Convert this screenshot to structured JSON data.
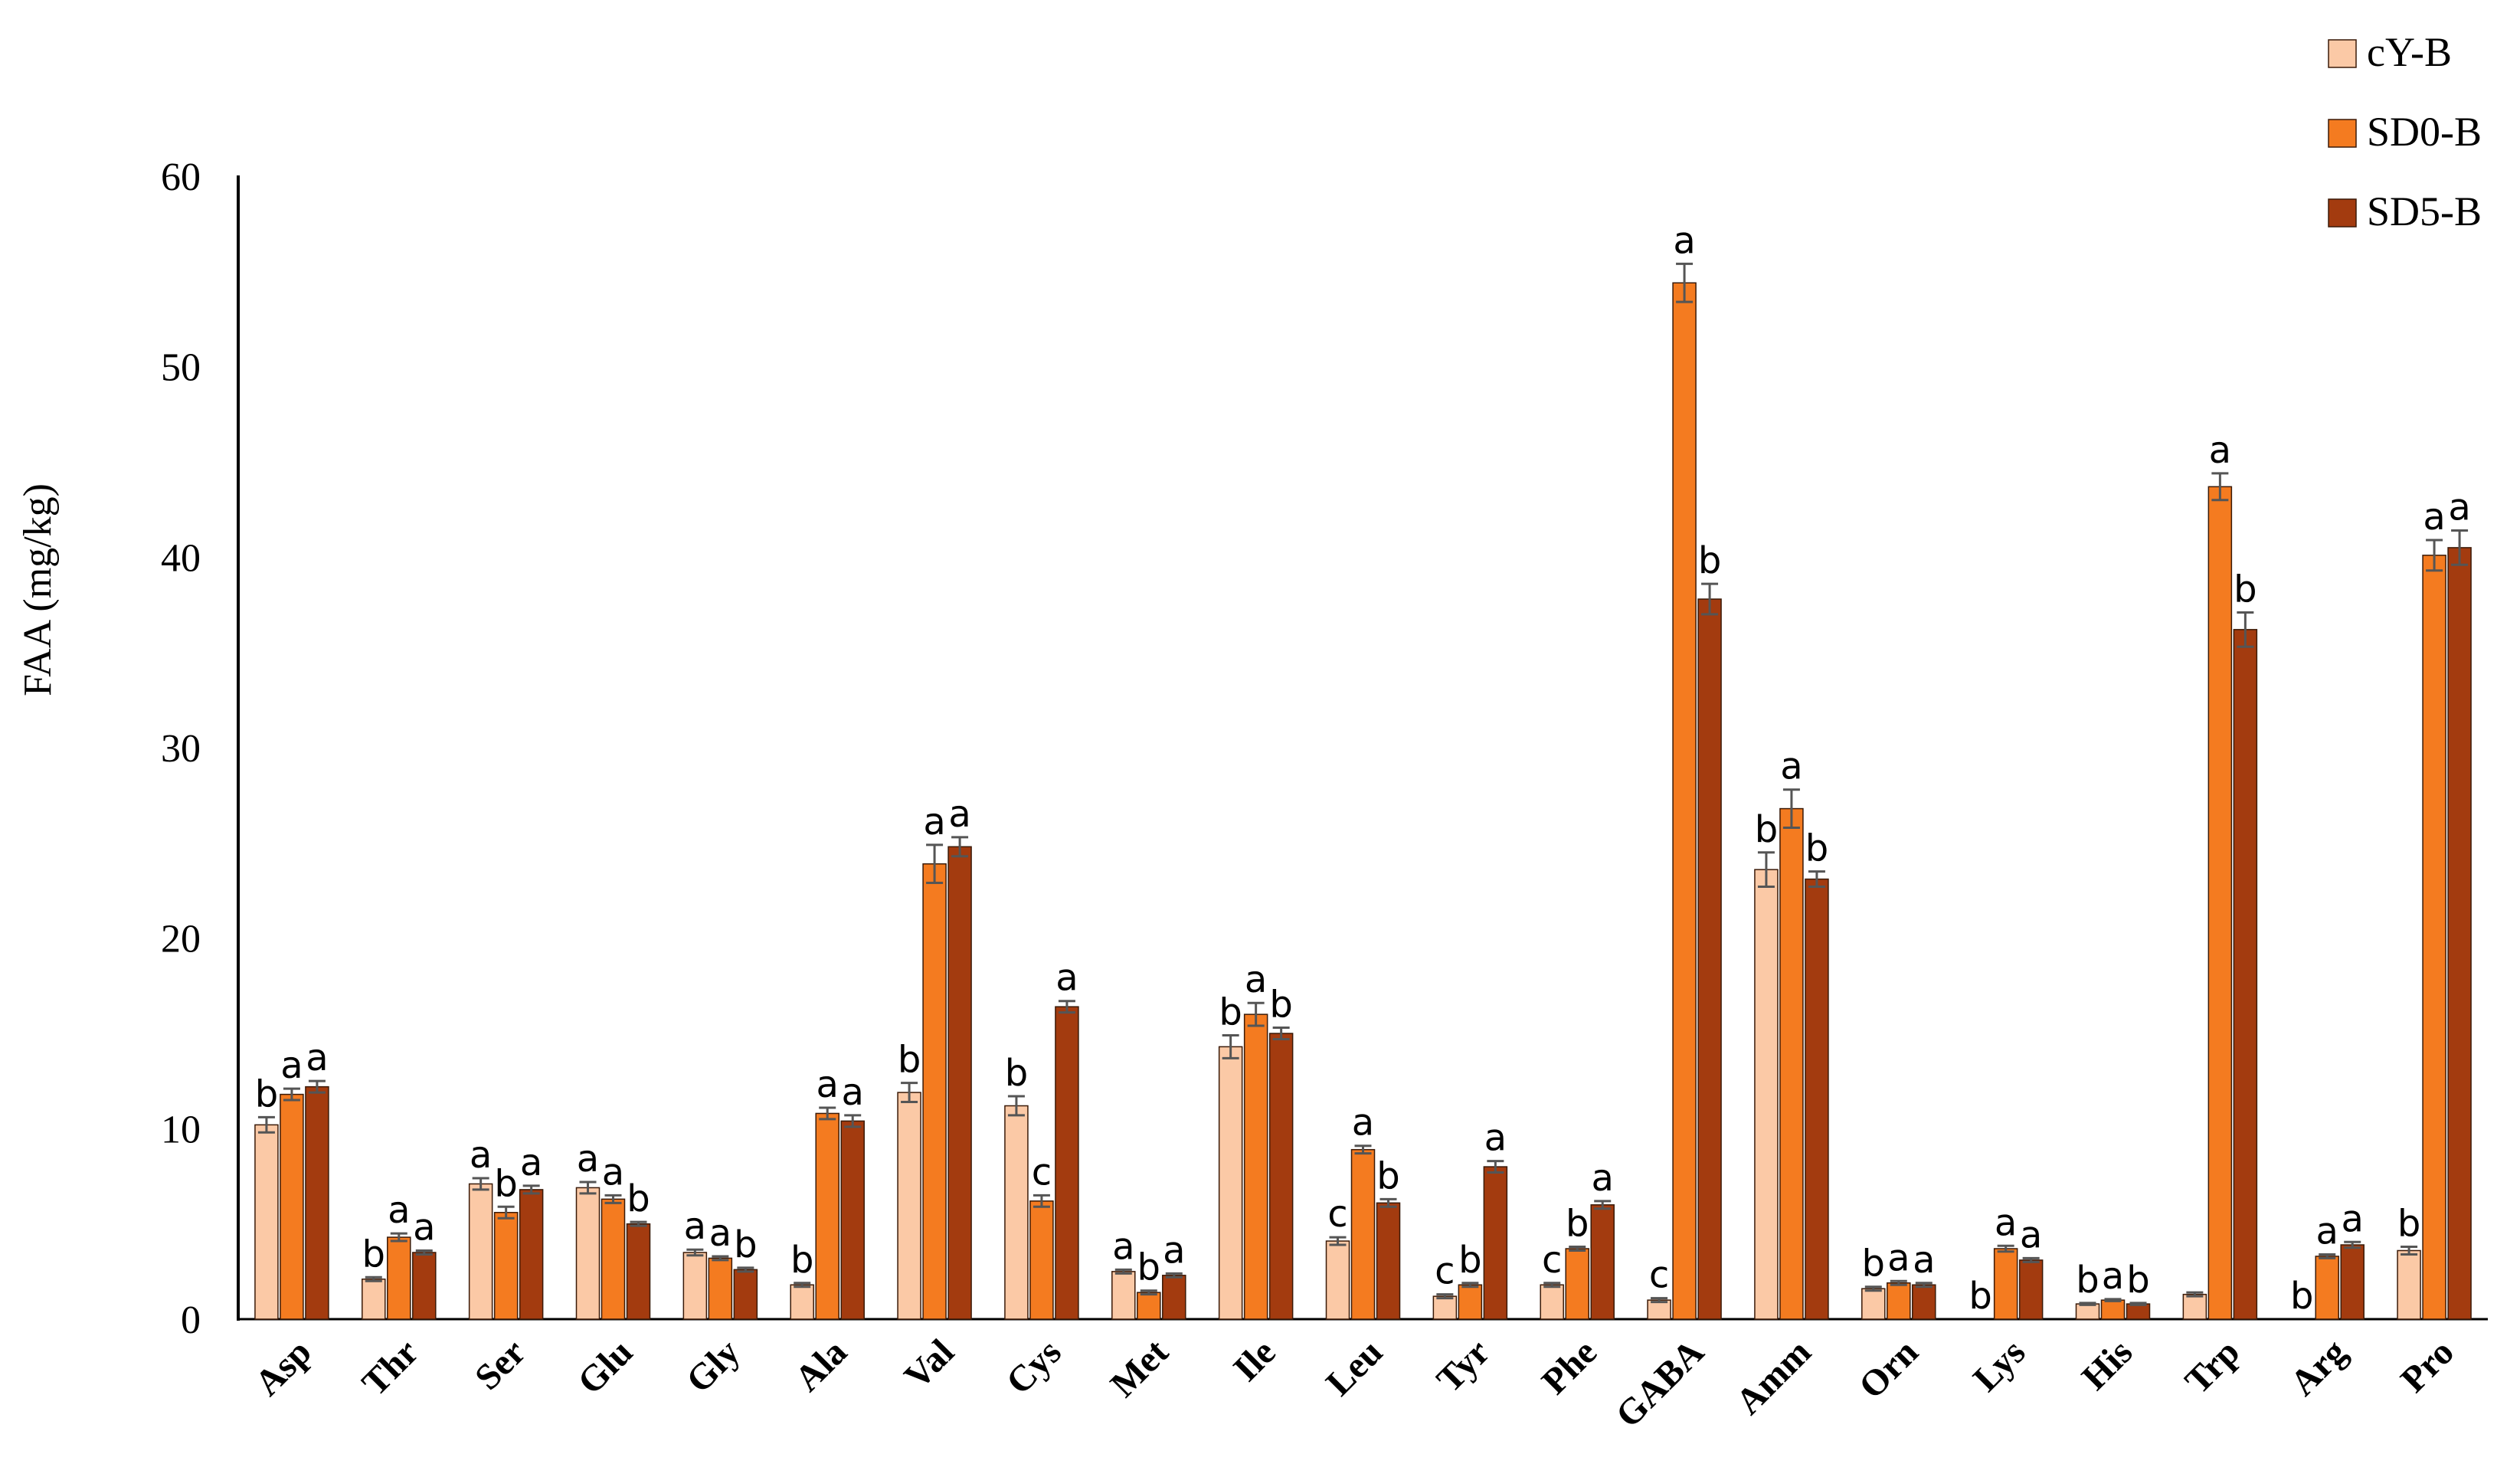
{
  "chart_data": {
    "type": "bar",
    "ylabel": "FAA (mg/kg)",
    "xlabel": "",
    "ylim": [
      0,
      60
    ],
    "yticks": [
      "0",
      "10",
      "20",
      "30",
      "40",
      "50",
      "60"
    ],
    "grid": false,
    "legend_position": "top-right",
    "categories": [
      "Asp",
      "Thr",
      "Ser",
      "Glu",
      "Gly",
      "Ala",
      "Val",
      "Cys",
      "Met",
      "Ile",
      "Leu",
      "Tyr",
      "Phe",
      "GABA",
      "Amm",
      "Orn",
      "Lys",
      "His",
      "Trp",
      "Arg",
      "Pro"
    ],
    "series": [
      {
        "name": "cY-B",
        "color": "#FBC9A6",
        "values": [
          10.2,
          2.1,
          7.1,
          6.9,
          3.5,
          1.8,
          11.9,
          11.2,
          2.5,
          14.3,
          4.1,
          1.2,
          1.8,
          1.0,
          23.6,
          1.6,
          0,
          0.8,
          1.3,
          0,
          3.6
        ],
        "errors": [
          0.4,
          0.1,
          0.3,
          0.3,
          0.15,
          0.1,
          0.5,
          0.5,
          0.1,
          0.6,
          0.2,
          0.1,
          0.1,
          0.1,
          0.9,
          0.1,
          0,
          0.05,
          0.1,
          0,
          0.2
        ],
        "letters": [
          "b",
          "b",
          "a",
          "a",
          "a",
          "b",
          "b",
          "b",
          "a",
          "b",
          "c",
          "c",
          "c",
          "c",
          "b",
          "b",
          "b",
          "b",
          "",
          "b",
          "b"
        ]
      },
      {
        "name": "SD0-B",
        "color": "#F47B20",
        "values": [
          11.8,
          4.3,
          5.6,
          6.3,
          3.2,
          10.8,
          23.9,
          6.2,
          1.4,
          16.0,
          8.9,
          1.8,
          3.7,
          54.4,
          26.8,
          1.9,
          3.7,
          1.0,
          43.7,
          3.3,
          40.1
        ],
        "errors": [
          0.3,
          0.2,
          0.3,
          0.2,
          0.1,
          0.3,
          1.0,
          0.3,
          0.1,
          0.6,
          0.2,
          0.1,
          0.1,
          1.0,
          1.0,
          0.1,
          0.15,
          0.05,
          0.7,
          0.1,
          0.8
        ],
        "letters": [
          "a",
          "a",
          "b",
          "a",
          "a",
          "a",
          "a",
          "c",
          "b",
          "a",
          "a",
          "b",
          "b",
          "a",
          "a",
          "a",
          "a",
          "a",
          "a",
          "a",
          "a"
        ]
      },
      {
        "name": "SD5-B",
        "color": "#A33B0F",
        "values": [
          12.2,
          3.5,
          6.8,
          5.0,
          2.6,
          10.4,
          24.8,
          16.4,
          2.3,
          15.0,
          6.1,
          8.0,
          6.0,
          37.8,
          23.1,
          1.8,
          3.1,
          0.8,
          36.2,
          3.9,
          40.5
        ],
        "errors": [
          0.3,
          0.1,
          0.2,
          0.1,
          0.1,
          0.3,
          0.5,
          0.3,
          0.1,
          0.3,
          0.2,
          0.3,
          0.2,
          0.8,
          0.4,
          0.1,
          0.1,
          0.05,
          0.9,
          0.15,
          0.9
        ],
        "letters": [
          "a",
          "a",
          "a",
          "b",
          "b",
          "a",
          "a",
          "a",
          "a",
          "b",
          "b",
          "a",
          "a",
          "b",
          "b",
          "a",
          "a",
          "b",
          "b",
          "a",
          "a"
        ]
      }
    ]
  }
}
